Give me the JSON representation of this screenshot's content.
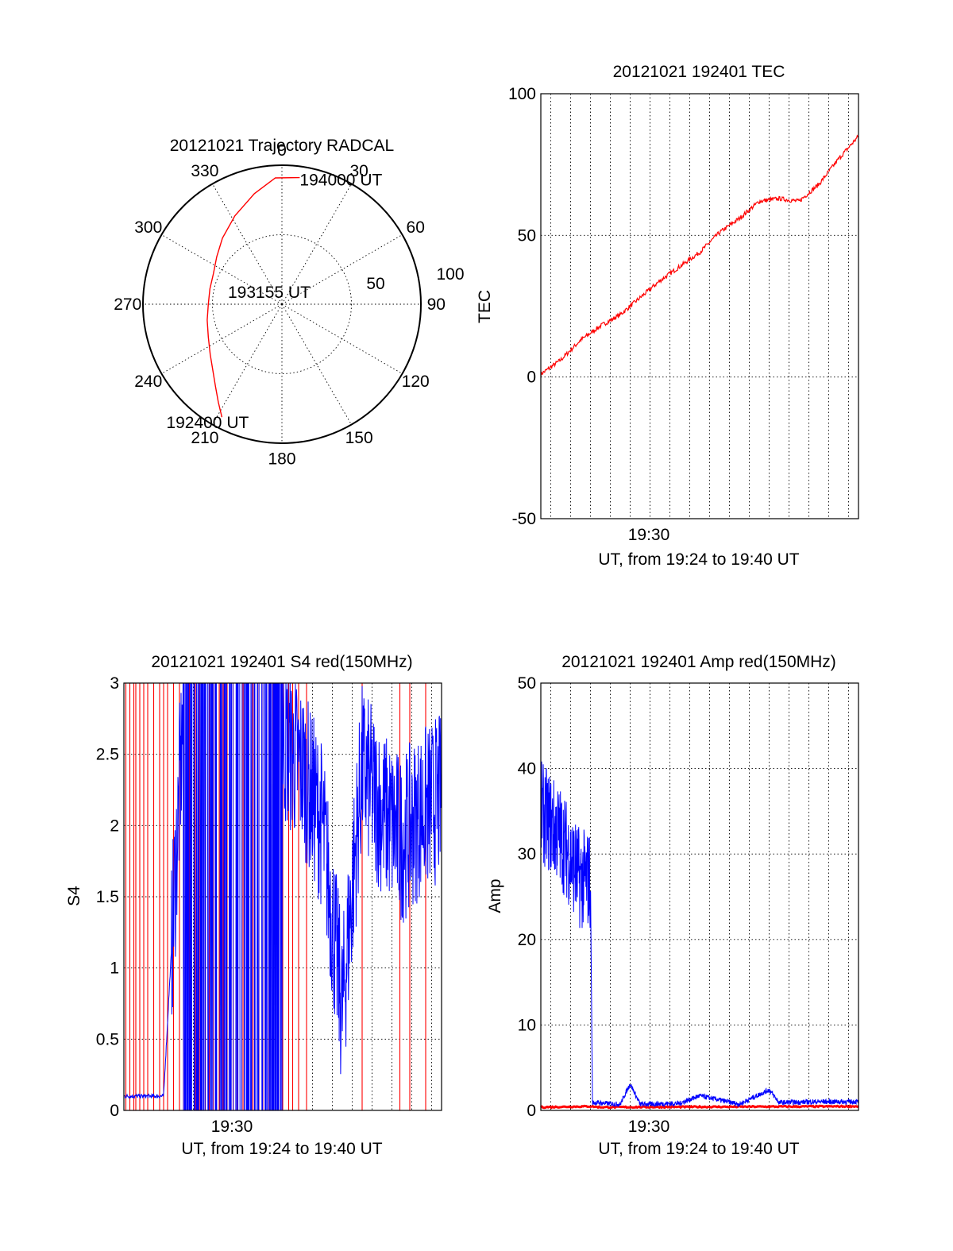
{
  "colors": {
    "red": "#ff0000",
    "blue": "#0000ff",
    "axis": "#000000",
    "background": "#ffffff"
  },
  "chart_data": [
    {
      "type": "polar",
      "title": "20121021 Trajectory RADCAL",
      "angle_labels": [
        "0",
        "30",
        "60",
        "90",
        "120",
        "150",
        "180",
        "210",
        "240",
        "270",
        "300",
        "330"
      ],
      "radius_labels": [
        "50",
        "100"
      ],
      "rlim": [
        0,
        100
      ],
      "grid": true,
      "series": [
        {
          "color": "red",
          "points": [
            {
              "az": 208,
              "r": 92
            },
            {
              "az": 213,
              "r": 84
            },
            {
              "az": 219,
              "r": 76
            },
            {
              "az": 226,
              "r": 69
            },
            {
              "az": 235,
              "r": 63
            },
            {
              "az": 246,
              "r": 58
            },
            {
              "az": 258,
              "r": 55
            },
            {
              "az": 270,
              "r": 53
            },
            {
              "az": 282,
              "r": 53
            },
            {
              "az": 294,
              "r": 54
            },
            {
              "az": 306,
              "r": 58
            },
            {
              "az": 318,
              "r": 64
            },
            {
              "az": 332,
              "r": 72
            },
            {
              "az": 346,
              "r": 82
            },
            {
              "az": 357,
              "r": 91
            },
            {
              "az": 8,
              "r": 92
            }
          ]
        }
      ],
      "annotations": [
        {
          "text": "194000 UT",
          "az": 8,
          "r": 92
        },
        {
          "text": "193155 UT",
          "az": 0,
          "r": 0
        },
        {
          "text": "192400 UT",
          "az": 208,
          "r": 92
        }
      ]
    },
    {
      "type": "line",
      "title": "20121021 192401 TEC",
      "xlabel": "UT, from 19:24 to 19:40 UT",
      "ylabel": "TEC",
      "xlim": [
        "19:24",
        "19:40"
      ],
      "x_tick_labels": [
        "19:30"
      ],
      "ylim": [
        -50,
        100
      ],
      "y_tick_labels": [
        "-50",
        "0",
        "50",
        "100"
      ],
      "grid": true,
      "series": [
        {
          "color": "red",
          "x": [
            "19:24",
            "19:25",
            "19:26",
            "19:27",
            "19:28",
            "19:29",
            "19:30",
            "19:31",
            "19:32",
            "19:33",
            "19:34",
            "19:35",
            "19:36",
            "19:37",
            "19:38",
            "19:39",
            "19:40"
          ],
          "y": [
            1,
            6,
            13,
            18,
            22,
            28,
            34,
            39,
            44,
            51,
            56,
            62,
            63,
            62,
            68,
            77,
            85
          ]
        }
      ]
    },
    {
      "type": "line",
      "title": "20121021 192401 S4 red(150MHz)",
      "xlabel": "UT, from 19:24 to 19:40 UT",
      "ylabel": "S4",
      "xlim": [
        "19:24",
        "19:40"
      ],
      "x_tick_labels": [
        "19:30"
      ],
      "ylim": [
        0,
        3
      ],
      "y_tick_labels": [
        "0",
        "0.5",
        "1",
        "1.5",
        "2",
        "2.5",
        "3"
      ],
      "grid": true,
      "series": [
        {
          "color": "red",
          "note_spikes_to_top": true,
          "spike_times_min": [
            0.1,
            0.3,
            0.5,
            0.6,
            0.8,
            1.0,
            1.2,
            1.5,
            1.8,
            2.0,
            2.2,
            2.5,
            2.8,
            3.0,
            3.3,
            3.6,
            3.8,
            4.1,
            4.3,
            4.5,
            4.8,
            5.0,
            5.2,
            5.5,
            5.7,
            6.0,
            6.2,
            6.5,
            6.8,
            7.0,
            7.3,
            7.5,
            7.8,
            8.0,
            8.3,
            8.5,
            8.8,
            9.2,
            12.0,
            13.9,
            14.4,
            15.2
          ]
        },
        {
          "color": "blue",
          "x": [
            "19:24",
            "19:26",
            "19:26.5",
            "19:27",
            "19:28",
            "19:29",
            "19:30",
            "19:31",
            "19:32",
            "19:33",
            "19:34",
            "19:35",
            "19:36",
            "19:37",
            "19:38",
            "19:39",
            "19:40"
          ],
          "y": [
            0.1,
            0.1,
            1.4,
            2.8,
            2.9,
            0.35,
            2.5,
            2.6,
            2.6,
            2.4,
            2.0,
            0.7,
            2.4,
            2.1,
            1.9,
            2.1,
            2.2
          ]
        }
      ]
    },
    {
      "type": "line",
      "title": "20121021 192401 Amp red(150MHz)",
      "xlabel": "UT, from 19:24 to 19:40 UT",
      "ylabel": "Amp",
      "xlim": [
        "19:24",
        "19:40"
      ],
      "x_tick_labels": [
        "19:30"
      ],
      "ylim": [
        0,
        50
      ],
      "y_tick_labels": [
        "0",
        "10",
        "20",
        "30",
        "40",
        "50"
      ],
      "grid": true,
      "series": [
        {
          "color": "red",
          "x": [
            "19:24",
            "19:26.5",
            "19:27",
            "19:40"
          ],
          "y": [
            0.3,
            0.4,
            0.3,
            0.4
          ]
        },
        {
          "color": "blue",
          "x": [
            "19:24",
            "19:25",
            "19:26",
            "19:26.5",
            "19:26.6",
            "19:28",
            "19:28.5",
            "19:29",
            "19:31",
            "19:32",
            "19:34",
            "19:35.5",
            "19:36",
            "19:38",
            "19:40"
          ],
          "y": [
            35,
            32,
            27,
            27,
            0.8,
            0.6,
            3.0,
            0.6,
            0.7,
            1.6,
            0.6,
            2.3,
            0.8,
            0.9,
            0.9
          ]
        }
      ]
    }
  ]
}
